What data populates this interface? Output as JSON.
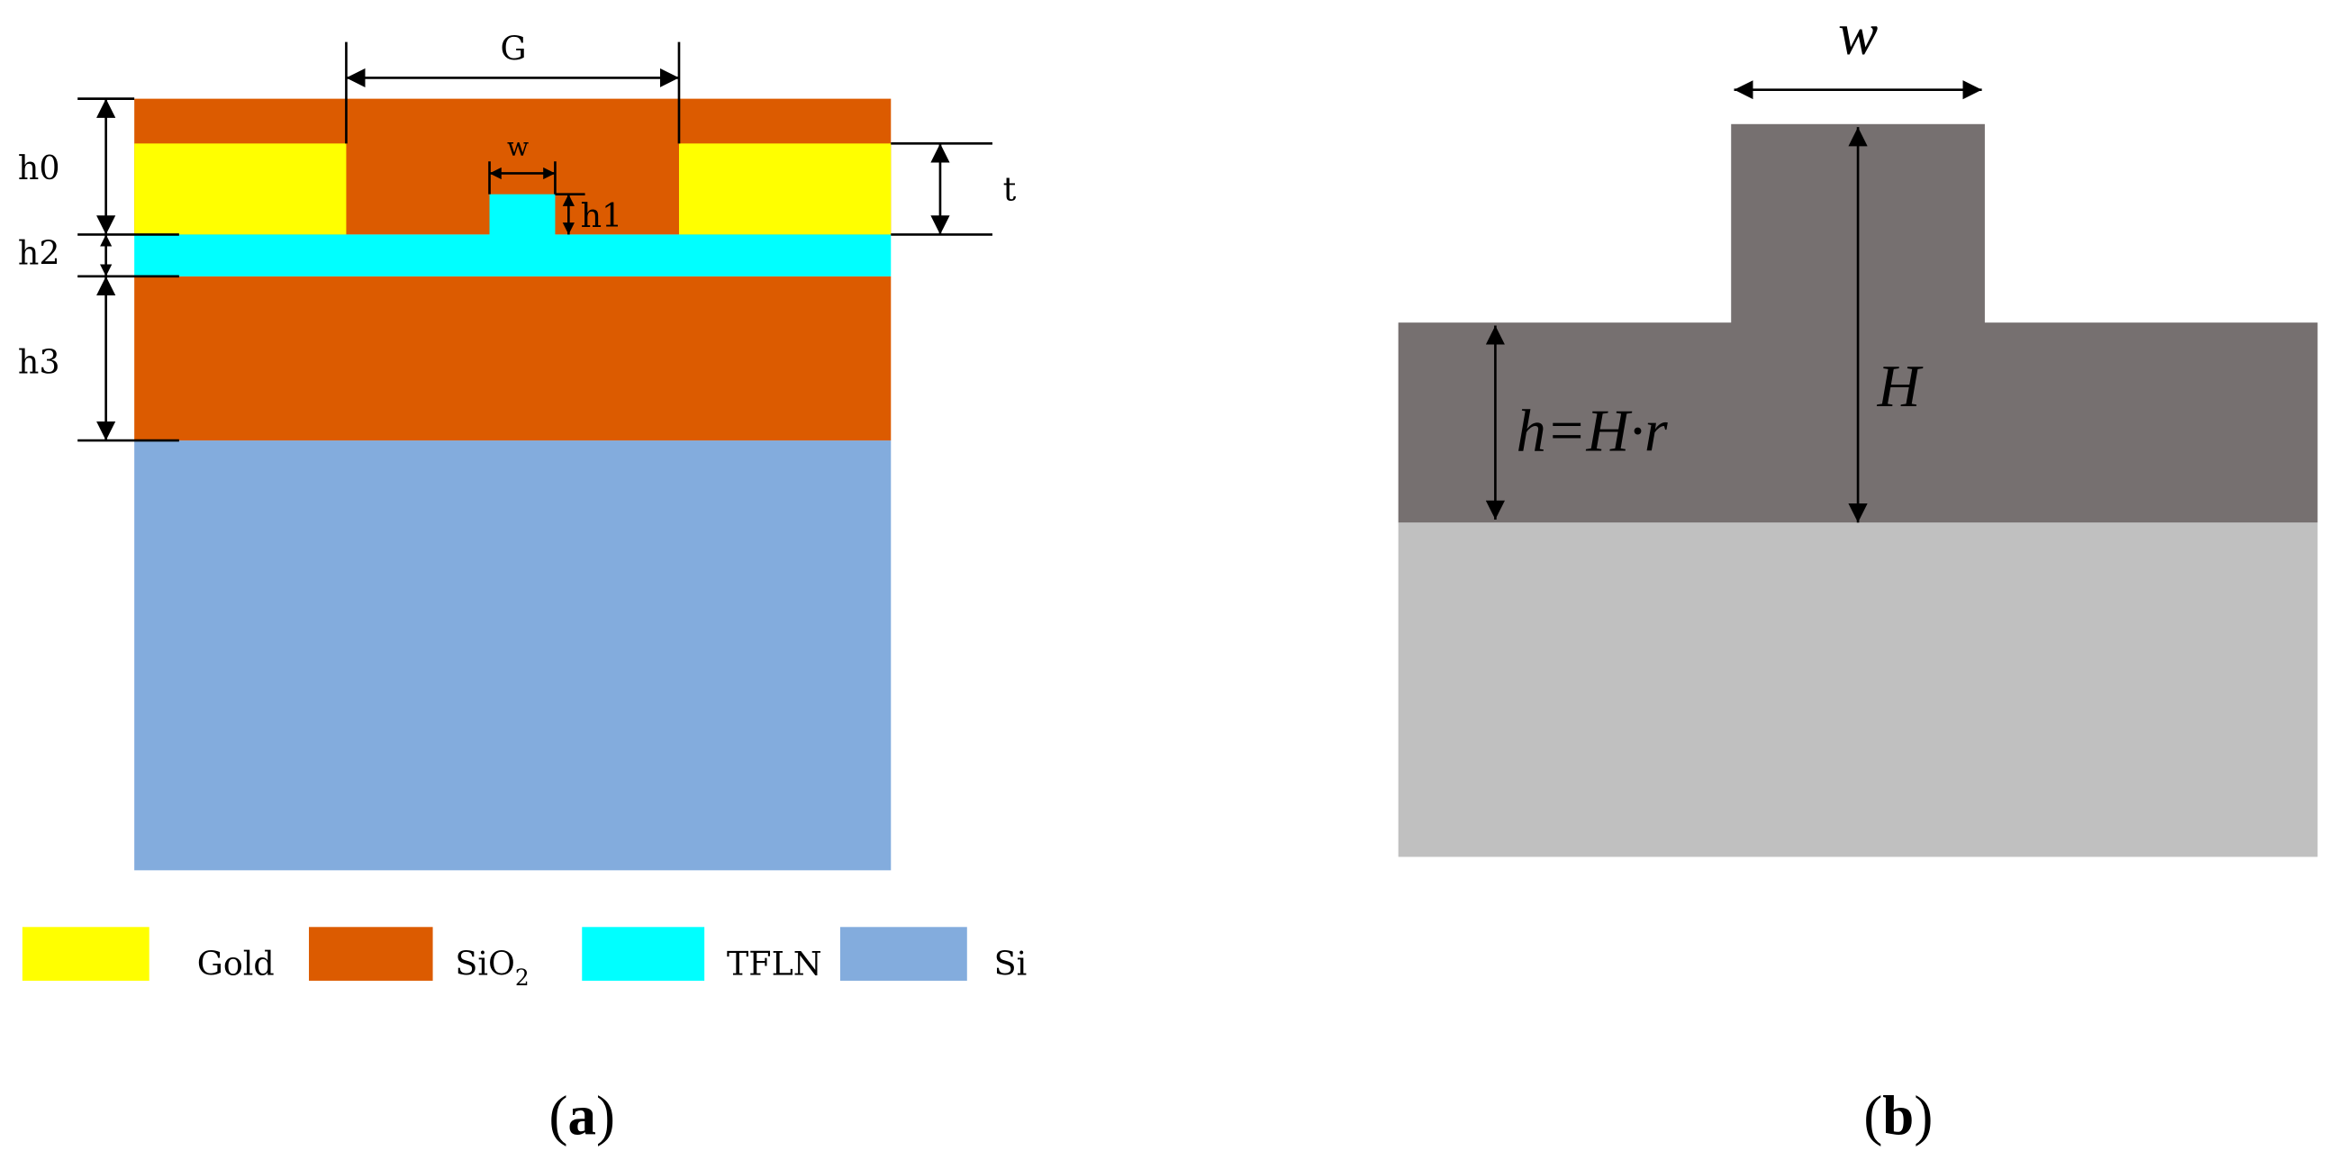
{
  "panel_a": {
    "labels": {
      "G": "G",
      "w": "w",
      "h0": "h0",
      "t": "t",
      "h1": "h1",
      "h2": "h2",
      "h3": "h3"
    },
    "legend": [
      {
        "text": "Gold"
      },
      {
        "base": "SiO",
        "sub": "2"
      },
      {
        "text": "TFLN"
      },
      {
        "text": "Si"
      }
    ],
    "caption": {
      "open": "(",
      "letter": "a",
      "close": ")"
    }
  },
  "panel_b": {
    "labels": {
      "w": "w",
      "H": "H",
      "h": "h=H·r"
    },
    "caption": {
      "open": "(",
      "letter": "b",
      "close": ")"
    }
  }
}
